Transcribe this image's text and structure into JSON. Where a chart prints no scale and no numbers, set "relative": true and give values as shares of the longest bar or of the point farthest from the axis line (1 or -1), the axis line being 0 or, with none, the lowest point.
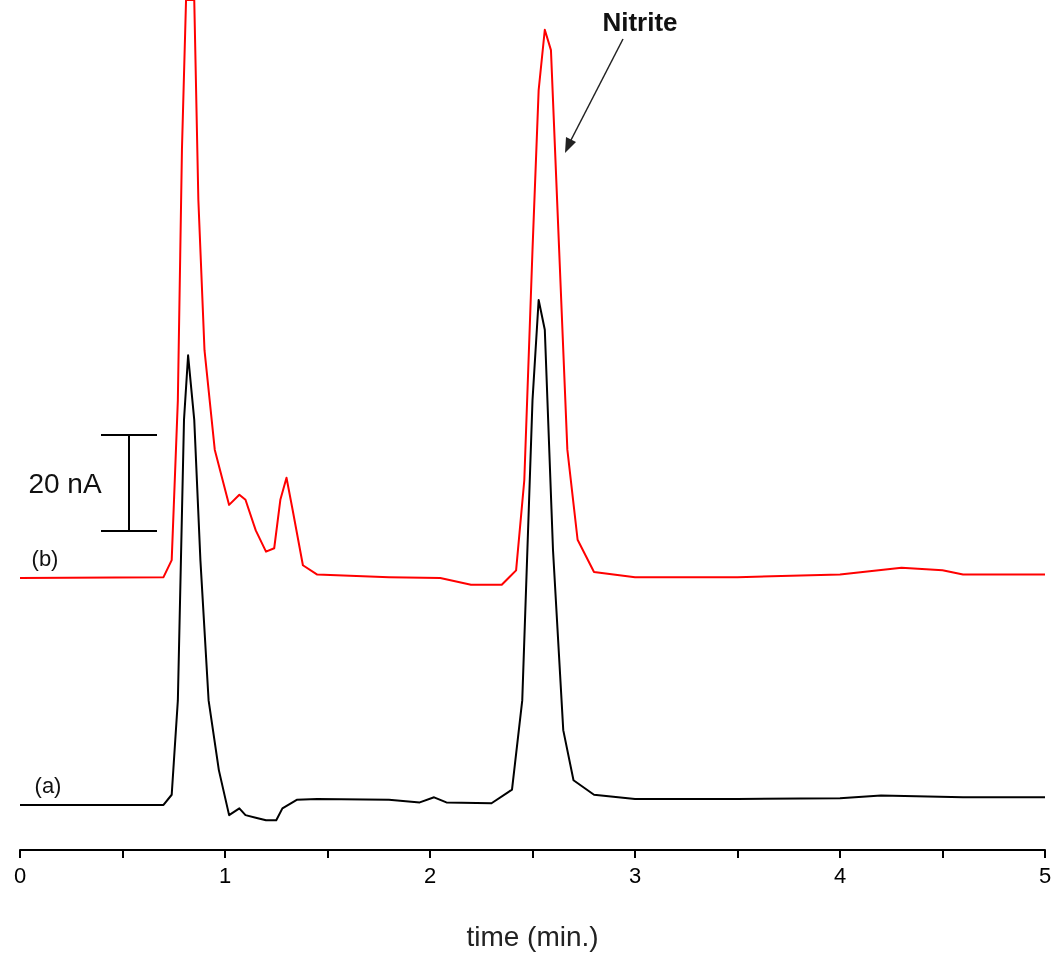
{
  "chart_data": {
    "type": "line",
    "relative": true,
    "xlabel": "time (min.)",
    "xlim": [
      0,
      5
    ],
    "xticks": [
      0,
      {
        "value": 0.5,
        "label": null
      },
      1,
      {
        "value": 1.5,
        "label": null
      },
      2,
      {
        "value": 2.5,
        "label": null
      },
      3,
      {
        "value": 3.5,
        "label": null
      },
      4,
      {
        "value": 4.5,
        "label": null
      },
      5
    ],
    "marker": "none",
    "grid": false,
    "series": [
      {
        "color": "#000000",
        "x": [
          0,
          0.7,
          0.74,
          0.77,
          0.8,
          0.82,
          0.85,
          0.88,
          0.92,
          0.97,
          1.02,
          1.07,
          1.1,
          1.15,
          1.2,
          1.25,
          1.28,
          1.35,
          1.45,
          1.8,
          1.95,
          2.02,
          2.08,
          2.3,
          2.4,
          2.45,
          2.5,
          2.53,
          2.56,
          2.6,
          2.65,
          2.7,
          2.8,
          3.0,
          3.5,
          4.0,
          4.2,
          4.6,
          5
        ],
        "values": [
          0.053,
          0.053,
          0.065,
          0.176,
          0.506,
          0.582,
          0.506,
          0.341,
          0.176,
          0.094,
          0.041,
          0.049,
          0.041,
          0.038,
          0.035,
          0.035,
          0.049,
          0.059,
          0.06,
          0.059,
          0.056,
          0.062,
          0.056,
          0.055,
          0.071,
          0.176,
          0.529,
          0.647,
          0.612,
          0.353,
          0.141,
          0.082,
          0.065,
          0.06,
          0.06,
          0.061,
          0.064,
          0.062,
          0.062
        ]
      },
      {
        "color": "#ff0000",
        "x": [
          0,
          0.7,
          0.74,
          0.77,
          0.79,
          0.81,
          0.85,
          0.87,
          0.9,
          0.95,
          1.02,
          1.07,
          1.1,
          1.15,
          1.2,
          1.24,
          1.27,
          1.3,
          1.33,
          1.38,
          1.45,
          1.8,
          2.05,
          2.2,
          2.35,
          2.42,
          2.46,
          2.5,
          2.53,
          2.56,
          2.59,
          2.63,
          2.67,
          2.72,
          2.8,
          3.0,
          3.5,
          4.0,
          4.3,
          4.5,
          4.6,
          5
        ],
        "values": [
          0.32,
          0.321,
          0.341,
          0.529,
          0.824,
          1,
          1,
          0.765,
          0.588,
          0.471,
          0.406,
          0.418,
          0.412,
          0.376,
          0.351,
          0.355,
          0.412,
          0.438,
          0.4,
          0.335,
          0.324,
          0.321,
          0.32,
          0.312,
          0.312,
          0.329,
          0.435,
          0.706,
          0.894,
          0.965,
          0.941,
          0.706,
          0.471,
          0.365,
          0.327,
          0.321,
          0.321,
          0.324,
          0.332,
          0.329,
          0.324,
          0.324
        ]
      }
    ],
    "annotations": [
      "20 nA",
      "(a)",
      "(b)",
      "Nitrite"
    ]
  }
}
